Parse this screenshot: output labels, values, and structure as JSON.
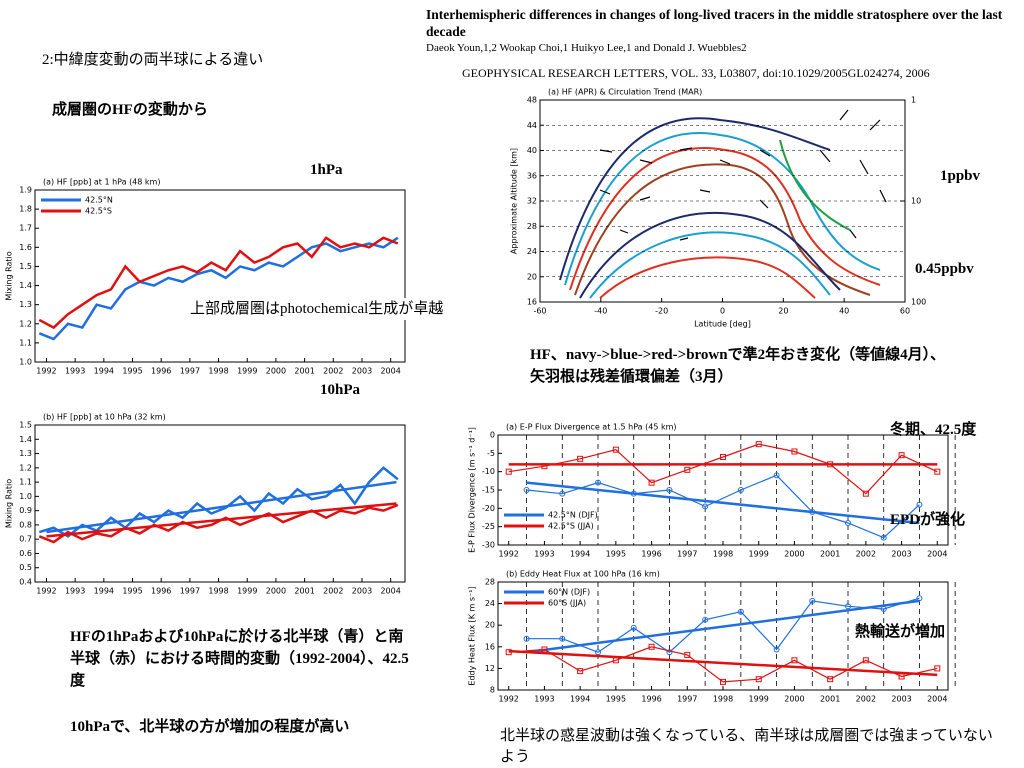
{
  "slide": {
    "heading": "2:中緯度変動の両半球による違い",
    "subheading": "成層圏のHFの変動から",
    "paper_title": "Interhemispheric differences in changes of long-lived tracers in the middle stratosphere over the last decade",
    "authors": "Daeok Youn,1,2 Wookap Choi,1 Huikyo Lee,1 and Donald J. Wuebbles2",
    "journal": "GEOPHYSICAL RESEARCH LETTERS, VOL. 33, L03807, doi:10.1029/2005GL024274, 2006",
    "label_1hpa": "1hPa",
    "label_10hpa": "10hPa",
    "note_photochem": "上部成層圏はphotochemical生成が卓越",
    "label_1ppbv": "1ppbv",
    "label_045ppbv": "0.45ppbv",
    "caption_contour": "HF、navy->blue->red->brownで準2年おき変化（等値線4月）、矢羽根は残差循環偏差（3月）",
    "note_winter": "冬期、42.5度",
    "note_epd": "EPDが強化",
    "note_heat": "熱輸送が増加",
    "caption_ts": "HFの1hPaおよび10hPaに於ける北半球（青）と南半球（赤）における時間的変動（1992-2004）、42.5度",
    "caption_ts2": "10hPaで、北半球の方が増加の程度が高い",
    "caption_ep": "北半球の惑星波動は強くなっている、南半球は成層圏では強まっていないよう"
  },
  "chart_data": [
    {
      "type": "line",
      "title": "(a) HF [ppb] at 1 hPa (48 km)",
      "ylabel": "Mixing Ratio",
      "legend": "upper left",
      "x": [
        1991.75,
        1992.25,
        1992.75,
        1993.25,
        1993.75,
        1994.25,
        1994.75,
        1995.25,
        1995.75,
        1996.25,
        1996.75,
        1997.25,
        1997.75,
        1998.25,
        1998.75,
        1999.25,
        1999.75,
        2000.25,
        2000.75,
        2001.25,
        2001.75,
        2002.25,
        2002.75,
        2003.25,
        2003.75,
        2004.25
      ],
      "xlim": [
        1991.6,
        2004.5
      ],
      "xticks": [
        1992,
        1993,
        1994,
        1995,
        1996,
        1997,
        1998,
        1999,
        2000,
        2001,
        2002,
        2003,
        2004
      ],
      "ylim": [
        1,
        1.9
      ],
      "yticks": [
        {
          "value": 1,
          "label": "1.0"
        },
        1.1,
        1.2,
        1.3,
        1.4,
        1.5,
        1.6,
        1.7,
        1.8,
        1.9
      ],
      "series": [
        {
          "name": "42.5°N",
          "color": "#1f6fe0",
          "values": [
            1.15,
            1.12,
            1.2,
            1.18,
            1.3,
            1.28,
            1.38,
            1.42,
            1.4,
            1.44,
            1.42,
            1.46,
            1.48,
            1.44,
            1.5,
            1.48,
            1.52,
            1.5,
            1.55,
            1.6,
            1.62,
            1.58,
            1.6,
            1.62,
            1.6,
            1.65
          ]
        },
        {
          "name": "42.5°S",
          "color": "#e01010",
          "values": [
            1.22,
            1.18,
            1.25,
            1.3,
            1.35,
            1.38,
            1.5,
            1.42,
            1.45,
            1.48,
            1.5,
            1.47,
            1.52,
            1.48,
            1.58,
            1.52,
            1.55,
            1.6,
            1.62,
            1.55,
            1.65,
            1.6,
            1.62,
            1.6,
            1.65,
            1.62
          ]
        }
      ]
    },
    {
      "type": "line",
      "title": "(b) HF [ppb] at 10 hPa (32 km)",
      "ylabel": "Mixing Ratio",
      "x": [
        1991.75,
        1992.25,
        1992.75,
        1993.25,
        1993.75,
        1994.25,
        1994.75,
        1995.25,
        1995.75,
        1996.25,
        1996.75,
        1997.25,
        1997.75,
        1998.25,
        1998.75,
        1999.25,
        1999.75,
        2000.25,
        2000.75,
        2001.25,
        2001.75,
        2002.25,
        2002.75,
        2003.25,
        2003.75,
        2004.25
      ],
      "xlim": [
        1991.6,
        2004.5
      ],
      "xticks": [
        1992,
        1993,
        1994,
        1995,
        1996,
        1997,
        1998,
        1999,
        2000,
        2001,
        2002,
        2003,
        2004
      ],
      "ylim": [
        0.4,
        1.5
      ],
      "yticks": [
        0.4,
        0.5,
        0.6,
        0.7,
        0.8,
        0.9,
        {
          "value": 1,
          "label": "1.0"
        },
        1.1,
        1.2,
        1.3,
        1.4,
        1.5
      ],
      "series": [
        {
          "color": "#1f6fe0",
          "values": [
            0.75,
            0.78,
            0.72,
            0.8,
            0.76,
            0.85,
            0.78,
            0.88,
            0.82,
            0.9,
            0.85,
            0.95,
            0.88,
            0.92,
            1.0,
            0.9,
            1.02,
            0.95,
            1.05,
            0.98,
            1.0,
            1.08,
            0.95,
            1.1,
            1.2,
            1.12
          ],
          "trend_x": [
            1992,
            2004.2
          ],
          "trend": [
            0.75,
            1.1
          ]
        },
        {
          "color": "#e01010",
          "values": [
            0.72,
            0.68,
            0.75,
            0.7,
            0.74,
            0.72,
            0.78,
            0.74,
            0.8,
            0.76,
            0.82,
            0.78,
            0.8,
            0.85,
            0.8,
            0.84,
            0.88,
            0.82,
            0.86,
            0.9,
            0.85,
            0.9,
            0.88,
            0.92,
            0.9,
            0.94
          ],
          "trend_x": [
            1992,
            2004.2
          ],
          "trend": [
            0.72,
            0.95
          ]
        }
      ]
    },
    {
      "type": "contour",
      "title": "(a) HF (APR) & Circulation Trend (MAR)",
      "xlabel": "Latitude [deg]",
      "ylabel": "Approximate Altitude [km]",
      "xlim": [
        -60,
        60
      ],
      "xticks": [
        -60,
        -40,
        -20,
        0,
        20,
        40,
        60
      ],
      "ylim": [
        16,
        48
      ],
      "yticks": [
        16,
        20,
        24,
        28,
        32,
        36,
        40,
        44,
        48
      ],
      "y2log": true,
      "y2lim": [
        100,
        1
      ],
      "y2ticks": [
        100,
        10,
        1
      ]
    },
    {
      "type": "line",
      "markers": true,
      "title": "(a) E-P Flux Divergence at 1.5 hPa (45 km)",
      "ylabel": "E-P Flux Divergence [m s⁻¹ d⁻¹]",
      "legend": "lower left",
      "dashed_year_grid": true,
      "xlim": [
        1991.7,
        2004.3
      ],
      "xticks": [
        1992,
        1993,
        1994,
        1995,
        1996,
        1997,
        1998,
        1999,
        2000,
        2001,
        2002,
        2003,
        2004
      ],
      "ylim": [
        -30,
        0
      ],
      "yticks": [
        -30,
        -25,
        -20,
        -15,
        -10,
        -5,
        0
      ],
      "series": [
        {
          "name": "42.5°N (DJF)",
          "color": "#1f6fe0",
          "marker": "circle",
          "x": [
            1992.5,
            1993.5,
            1994.5,
            1995.5,
            1996.5,
            1997.5,
            1998.5,
            1999.5,
            2000.5,
            2001.5,
            2002.5,
            2003.5
          ],
          "values": [
            -15,
            -16,
            -13,
            -16,
            -15,
            -19.5,
            -15,
            -11,
            -21,
            -24,
            -28,
            -19
          ],
          "trend_x": [
            1992.5,
            2003.5
          ],
          "trend": [
            -13,
            -24
          ]
        },
        {
          "name": "42.5°S (JJA)",
          "color": "#e01010",
          "marker": "square",
          "x": [
            1992,
            1993,
            1994,
            1995,
            1996,
            1997,
            1998,
            1999,
            2000,
            2001,
            2002,
            2003,
            2004
          ],
          "values": [
            -10,
            -8.5,
            -6.5,
            -4,
            -13,
            -9.5,
            -6,
            -2.5,
            -4.5,
            -8,
            -16,
            -5.5,
            -10
          ],
          "trend_x": [
            1992,
            2004
          ],
          "trend": [
            -8,
            -8
          ]
        }
      ]
    },
    {
      "type": "line",
      "markers": true,
      "title": "(b) Eddy Heat Flux at 100 hPa (16 km)",
      "ylabel": "Eddy Heat Flux [K m s⁻¹]",
      "legend": "upper left",
      "dashed_year_grid": true,
      "xlim": [
        1991.7,
        2004.3
      ],
      "xticks": [
        1992,
        1993,
        1994,
        1995,
        1996,
        1997,
        1998,
        1999,
        2000,
        2001,
        2002,
        2003,
        2004
      ],
      "ylim": [
        8,
        28
      ],
      "yticks": [
        8,
        12,
        16,
        20,
        24,
        28
      ],
      "series": [
        {
          "name": "60°N (DJF)",
          "color": "#1f6fe0",
          "marker": "circle",
          "x": [
            1992.5,
            1993.5,
            1994.5,
            1995.5,
            1996.5,
            1997.5,
            1998.5,
            1999.5,
            2000.5,
            2001.5,
            2002.5,
            2003.5
          ],
          "values": [
            17.5,
            17.5,
            15,
            19.5,
            15,
            21,
            22.5,
            15.5,
            24.5,
            23.5,
            23,
            25
          ],
          "trend_x": [
            1992.5,
            2003.5
          ],
          "trend": [
            15,
            24.5
          ]
        },
        {
          "name": "60°S (JJA)",
          "color": "#e01010",
          "marker": "square",
          "x": [
            1992,
            1993,
            1994,
            1995,
            1996,
            1997,
            1998,
            1999,
            2000,
            2001,
            2002,
            2003,
            2004
          ],
          "values": [
            15,
            15.5,
            11.5,
            13.5,
            16,
            14.5,
            9.5,
            10,
            13.5,
            10,
            13.5,
            10.5,
            12
          ],
          "trend_x": [
            1992,
            2004
          ],
          "trend": [
            15.2,
            10.8
          ]
        }
      ]
    }
  ]
}
